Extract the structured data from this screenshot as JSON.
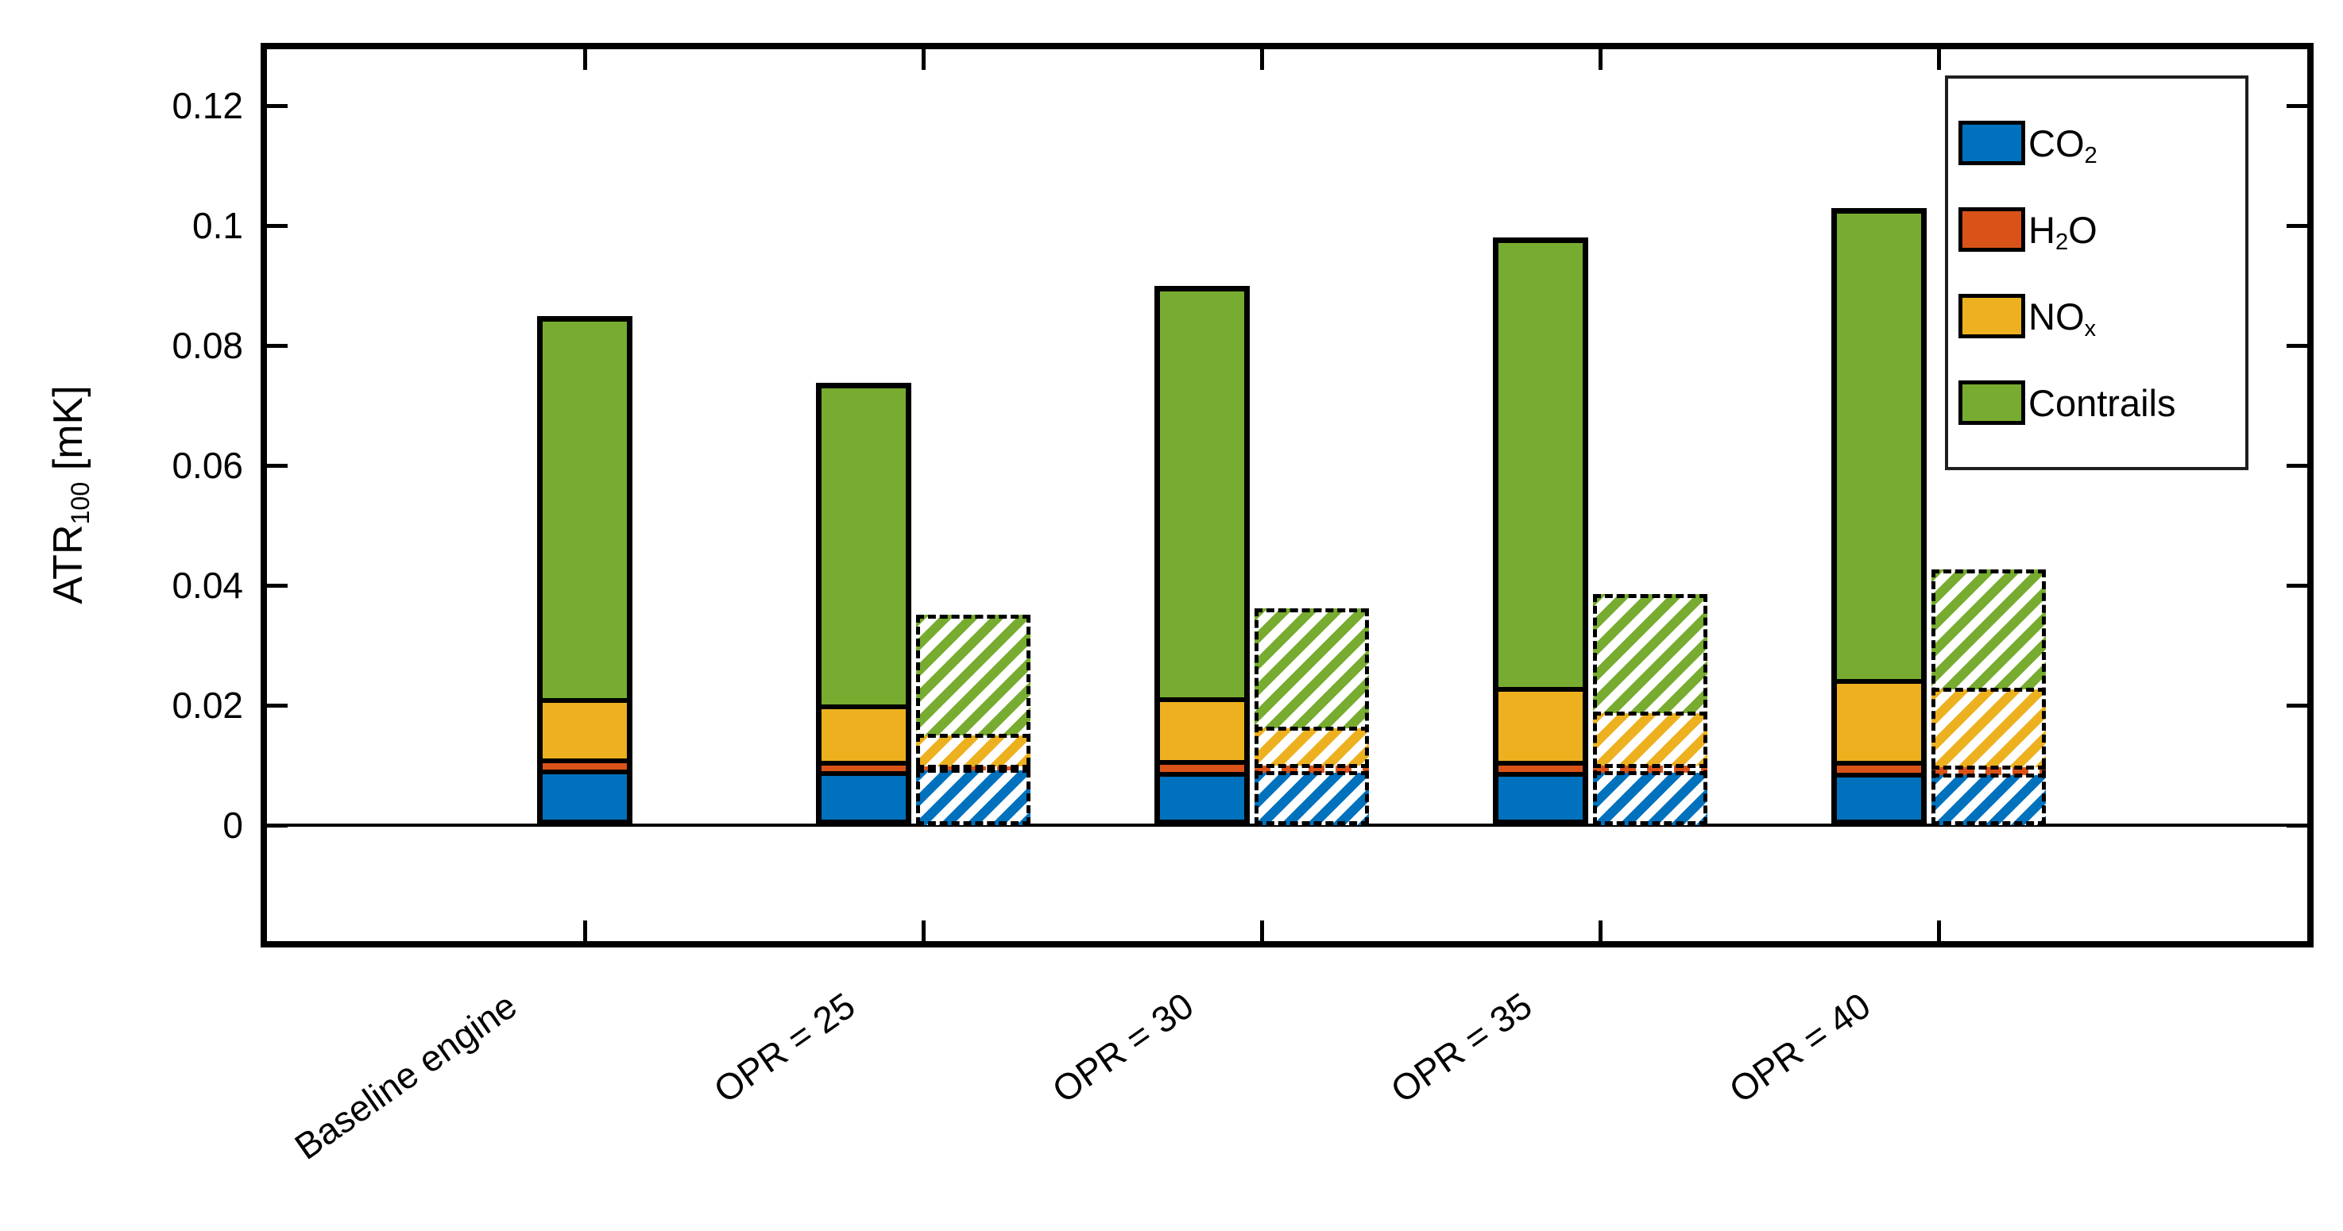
{
  "figure": {
    "background": "#ffffff",
    "axis_color": "#000000"
  },
  "y_axis": {
    "label": {
      "pre": "ATR",
      "sub": "100",
      "post": " [mK]"
    },
    "range": [
      -0.02,
      0.13
    ],
    "ticks": [
      {
        "value": 0,
        "label": "0"
      },
      {
        "value": 0.02,
        "label": "0.02"
      },
      {
        "value": 0.04,
        "label": "0.04"
      },
      {
        "value": 0.06,
        "label": "0.06"
      },
      {
        "value": 0.08,
        "label": "0.08"
      },
      {
        "value": 0.1,
        "label": "0.1"
      },
      {
        "value": 0.12,
        "label": "0.12"
      }
    ]
  },
  "x_axis": {
    "categories": [
      "Baseline engine",
      "OPR = 25",
      "OPR = 30",
      "OPR = 35",
      "OPR = 40"
    ],
    "label_rotation_deg": -35
  },
  "legend": {
    "position": "upper-right",
    "entries": [
      {
        "name": "CO2",
        "color": "#0072BD",
        "parts": [
          {
            "t": "CO"
          },
          {
            "t": "2",
            "sub": true
          }
        ]
      },
      {
        "name": "H2O",
        "color": "#D95319",
        "parts": [
          {
            "t": "H"
          },
          {
            "t": "2",
            "sub": true
          },
          {
            "t": "O"
          }
        ]
      },
      {
        "name": "NOx",
        "color": "#EDB120",
        "parts": [
          {
            "t": "NO"
          },
          {
            "t": "x",
            "sub": true
          }
        ]
      },
      {
        "name": "Contrails",
        "color": "#77AC30",
        "parts": [
          {
            "t": "Contrails"
          }
        ]
      }
    ]
  },
  "chart_data": {
    "type": "bar",
    "stacked": true,
    "grid": false,
    "title": "",
    "xlabel": "",
    "ylabel": "ATR_100 [mK]",
    "ylim": [
      -0.02,
      0.13
    ],
    "legend_position": "upper right",
    "categories": [
      "Baseline engine",
      "OPR = 25",
      "OPR = 30",
      "OPR = 35",
      "OPR = 40"
    ],
    "components": [
      "CO2",
      "H2O",
      "NOx",
      "Contrails"
    ],
    "colors": {
      "CO2": "#0072BD",
      "H2O": "#D95319",
      "NOx": "#EDB120",
      "Contrails": "#77AC30"
    },
    "series": [
      {
        "name": "solid bars",
        "style": "solid",
        "stacks": {
          "CO2": [
            0.0093,
            0.009,
            0.0089,
            0.0089,
            0.0088
          ],
          "H2O": [
            0.001,
            0.001,
            0.0012,
            0.0011,
            0.0012
          ],
          "NOx": [
            0.0105,
            0.0097,
            0.0108,
            0.0126,
            0.014
          ],
          "Contrails": [
            0.0641,
            0.0541,
            0.069,
            0.0754,
            0.0789
          ]
        },
        "totals": [
          0.0849,
          0.0738,
          0.0899,
          0.098,
          0.1029
        ]
      },
      {
        "name": "hatched bars",
        "style": "hatched",
        "stacks": {
          "CO2": [
            null,
            0.0091,
            0.0087,
            0.0087,
            0.0084
          ],
          "H2O": [
            null,
            0.0007,
            0.0012,
            0.0012,
            0.0013
          ],
          "NOx": [
            null,
            0.0052,
            0.0063,
            0.0088,
            0.013
          ],
          "Contrails": [
            null,
            0.0201,
            0.02,
            0.0198,
            0.02
          ]
        },
        "totals": [
          null,
          0.0351,
          0.0362,
          0.0385,
          0.0427
        ]
      }
    ]
  }
}
